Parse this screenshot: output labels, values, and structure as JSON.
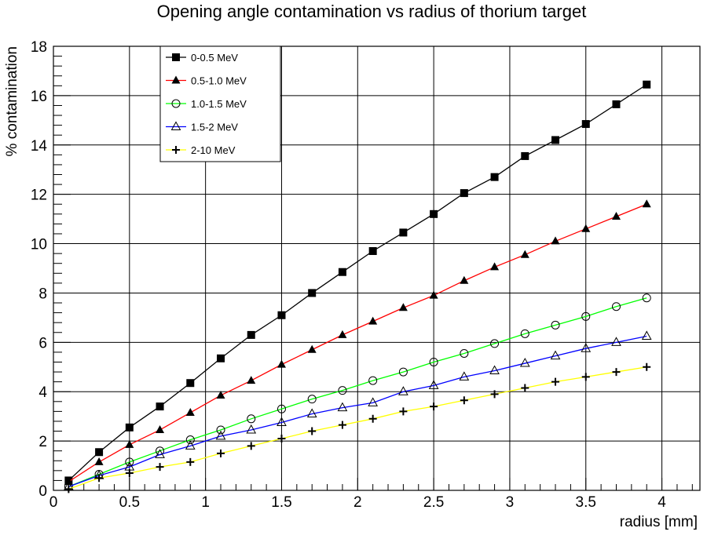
{
  "chart_data": {
    "type": "line",
    "title": "Opening angle contamination vs radius of thorium target",
    "xlabel": "radius [mm]",
    "ylabel": "% contamination",
    "xlim": [
      0,
      4.25
    ],
    "ylim": [
      0,
      18
    ],
    "xticks": [
      "0",
      "0.5",
      "1",
      "1.5",
      "2",
      "2.5",
      "3",
      "3.5",
      "4"
    ],
    "yticks": [
      "0",
      "2",
      "4",
      "6",
      "8",
      "10",
      "12",
      "14",
      "16",
      "18"
    ],
    "grid": true,
    "legend_position": "top-left",
    "x": [
      0.1,
      0.3,
      0.5,
      0.7,
      0.9,
      1.1,
      1.3,
      1.5,
      1.7,
      1.9,
      2.1,
      2.3,
      2.5,
      2.7,
      2.9,
      3.1,
      3.3,
      3.5,
      3.7,
      3.9
    ],
    "series": [
      {
        "name": "0-0.5 MeV",
        "color": "#000000",
        "marker": "square-filled",
        "values": [
          0.4,
          1.55,
          2.55,
          3.4,
          4.35,
          5.35,
          6.3,
          7.1,
          8.0,
          8.85,
          9.7,
          10.45,
          11.2,
          12.05,
          12.7,
          13.55,
          14.2,
          14.85,
          15.65,
          16.45
        ]
      },
      {
        "name": "0.5-1.0 MeV",
        "color": "#ff0000",
        "marker": "triangle-filled",
        "values": [
          0.35,
          1.15,
          1.85,
          2.45,
          3.15,
          3.85,
          4.45,
          5.1,
          5.7,
          6.3,
          6.85,
          7.4,
          7.9,
          8.5,
          9.05,
          9.55,
          10.1,
          10.6,
          11.1,
          11.6
        ]
      },
      {
        "name": "1.0-1.5 MeV",
        "color": "#00ff00",
        "marker": "circle-open",
        "values": [
          0.15,
          0.65,
          1.15,
          1.6,
          2.05,
          2.45,
          2.9,
          3.3,
          3.7,
          4.05,
          4.45,
          4.8,
          5.2,
          5.55,
          5.95,
          6.35,
          6.7,
          7.05,
          7.45,
          7.8
        ]
      },
      {
        "name": "1.5-2 MeV",
        "color": "#0000ff",
        "marker": "triangle-open",
        "values": [
          0.15,
          0.6,
          0.95,
          1.45,
          1.8,
          2.2,
          2.45,
          2.75,
          3.1,
          3.35,
          3.55,
          4.0,
          4.25,
          4.6,
          4.85,
          5.15,
          5.45,
          5.75,
          6.0,
          6.25
        ]
      },
      {
        "name": "2-10 MeV",
        "color": "#ffff00",
        "marker": "plus",
        "values": [
          0.05,
          0.5,
          0.7,
          0.95,
          1.15,
          1.5,
          1.8,
          2.1,
          2.4,
          2.65,
          2.9,
          3.2,
          3.4,
          3.65,
          3.9,
          4.15,
          4.4,
          4.6,
          4.8,
          5.0
        ]
      }
    ]
  }
}
